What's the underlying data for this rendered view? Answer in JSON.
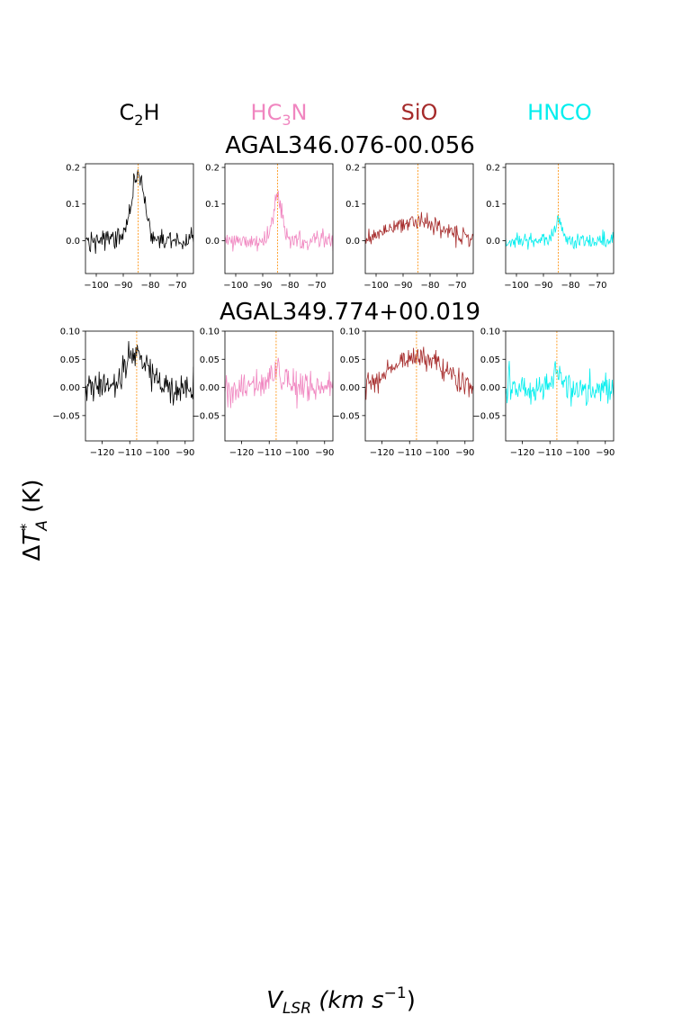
{
  "figure": {
    "ylabel": "ΔT*_A (K)",
    "xlabel": "V_LSR (km s^-1)"
  },
  "molecules": [
    {
      "key": "C2H",
      "base": "C",
      "sub": "2",
      "rest": "H",
      "color": "#000000"
    },
    {
      "key": "HC3N",
      "base": "HC",
      "sub": "3",
      "rest": "N",
      "color": "#f086c0"
    },
    {
      "key": "SiO",
      "base": "SiO",
      "sub": "",
      "rest": "",
      "color": "#a52a2a"
    },
    {
      "key": "HNCO",
      "base": "HNCO",
      "sub": "",
      "rest": "",
      "color": "#00eeee"
    }
  ],
  "chart_data": [
    {
      "type": "line",
      "source": "AGAL346.076-00.056",
      "vlsr": -84.5,
      "xlim": [
        -104,
        -64
      ],
      "ylim": [
        -0.09,
        0.21
      ],
      "xticks": [
        -100,
        -90,
        -80,
        -70
      ],
      "yticks": [
        0.0,
        0.1,
        0.2
      ],
      "ytick_labels": [
        "0.0",
        "0.1",
        "0.2"
      ],
      "series": [
        {
          "molecule": "C2H",
          "peak": 0.185,
          "width": 2.4,
          "noise": 0.026
        },
        {
          "molecule": "HC3N",
          "peak": 0.12,
          "width": 1.6,
          "noise": 0.025
        },
        {
          "molecule": "SiO",
          "peak": 0.05,
          "width": 10.0,
          "noise": 0.022
        },
        {
          "molecule": "HNCO",
          "peak": 0.06,
          "width": 1.2,
          "noise": 0.018
        }
      ]
    },
    {
      "type": "line",
      "source": "AGAL349.774+00.019",
      "vlsr": -107.5,
      "xlim": [
        -126,
        -87
      ],
      "ylim": [
        -0.095,
        0.1
      ],
      "xticks": [
        -120,
        -110,
        -100,
        -90
      ],
      "yticks": [
        -0.05,
        0.0,
        0.05,
        0.1
      ],
      "ytick_labels": [
        "−0.05",
        "0.00",
        "0.05",
        "0.10"
      ],
      "series": [
        {
          "molecule": "C2H",
          "peak": 0.065,
          "width": 3.5,
          "noise": 0.025
        },
        {
          "molecule": "HC3N",
          "peak": 0.03,
          "width": 3.0,
          "noise": 0.025
        },
        {
          "molecule": "SiO",
          "peak": 0.055,
          "width": 9.0,
          "noise": 0.018
        },
        {
          "molecule": "HNCO",
          "peak": 0.03,
          "width": 1.5,
          "noise": 0.026
        }
      ]
    }
  ]
}
